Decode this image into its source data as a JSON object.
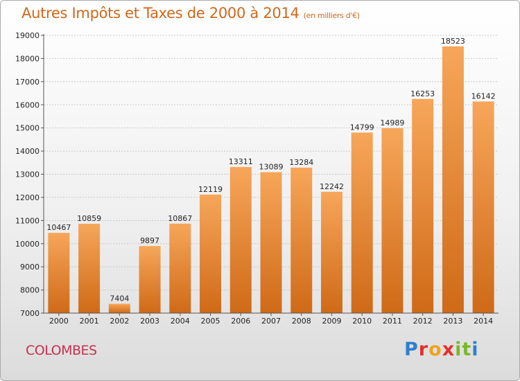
{
  "header": {
    "title": "Autres Impôts et Taxes de 2000 à 2014",
    "unit": "(en milliers d'€)"
  },
  "footer": {
    "commune": "COLOMBES",
    "logo_letters": [
      "P",
      "r",
      "o",
      "x",
      "i",
      "t",
      "i"
    ]
  },
  "colors": {
    "bar_light": "#f7a65a",
    "bar_dark": "#cf6a17",
    "title": "#d0671a",
    "commune": "#c4314e"
  },
  "chart_data": {
    "type": "bar",
    "title": "Autres Impôts et Taxes de 2000 à 2014",
    "subtitle": "(en milliers d'€)",
    "xlabel": "",
    "ylabel": "",
    "categories": [
      "2000",
      "2001",
      "2002",
      "2003",
      "2004",
      "2005",
      "2006",
      "2007",
      "2008",
      "2009",
      "2010",
      "2011",
      "2012",
      "2013",
      "2014"
    ],
    "values": [
      10467,
      10859,
      7404,
      9897,
      10867,
      12119,
      13311,
      13089,
      13284,
      12242,
      14799,
      14989,
      16253,
      18523,
      16142
    ],
    "ylim": [
      7000,
      19000
    ],
    "yticks": [
      7000,
      8000,
      9000,
      10000,
      11000,
      12000,
      13000,
      14000,
      15000,
      16000,
      17000,
      18000,
      19000
    ],
    "grid": true,
    "legend": "none"
  }
}
